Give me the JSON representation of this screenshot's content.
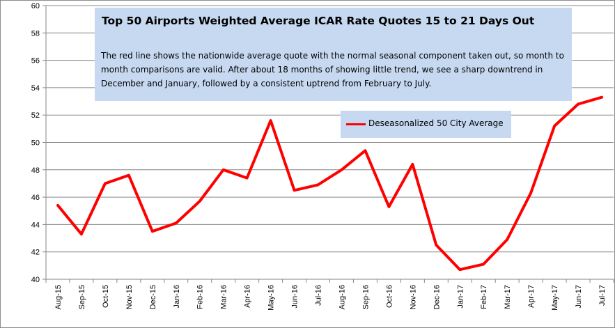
{
  "chart_data": {
    "type": "line",
    "title": "Top 50 Airports  Weighted Average ICAR Rate Quotes  15 to 21 Days Out",
    "subtitle": "The red line shows the nationwide average quote with the normal seasonal  component taken out, so month to month comparisons are valid. After about 18 months of showing little trend,  we see a sharp downtrend  in December and January, followed by a consistent uptrend  from February to July.",
    "xlabel": "",
    "ylabel": "",
    "ylim": [
      40,
      60
    ],
    "yticks": [
      40,
      42,
      44,
      46,
      48,
      50,
      52,
      54,
      56,
      58,
      60
    ],
    "grid": true,
    "legend_position": "top-right",
    "categories": [
      "Aug-15",
      "Sep-15",
      "Oct-15",
      "Nov-15",
      "Dec-15",
      "Jan-16",
      "Feb-16",
      "Mar-16",
      "Apr-16",
      "May-16",
      "Jun-16",
      "Jul-16",
      "Aug-16",
      "Sep-16",
      "Oct-16",
      "Nov-16",
      "Dec-16",
      "Jan-17",
      "Feb-17",
      "Mar-17",
      "Apr-17",
      "May-17",
      "Jun-17",
      "Jul-17"
    ],
    "series": [
      {
        "name": "Deseasonalized 50 City Average",
        "color": "#ff0000",
        "values": [
          45.4,
          43.3,
          47.0,
          47.6,
          43.5,
          44.1,
          45.7,
          48.0,
          47.4,
          51.6,
          46.5,
          46.9,
          48.0,
          49.4,
          45.3,
          48.4,
          42.5,
          40.7,
          41.1,
          42.9,
          46.3,
          51.2,
          52.8,
          53.3
        ]
      }
    ]
  }
}
